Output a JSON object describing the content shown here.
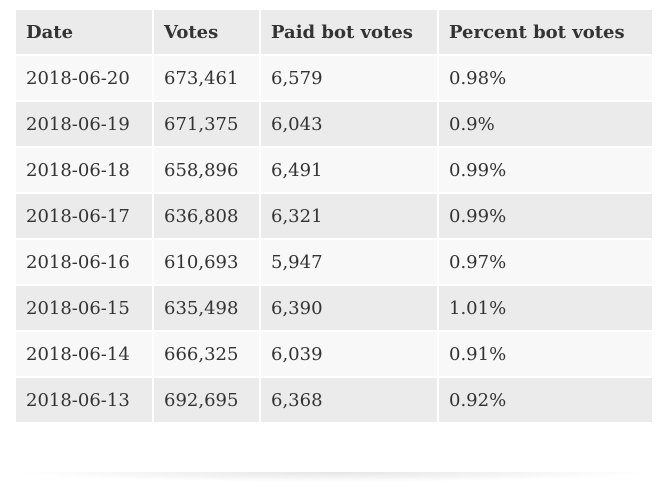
{
  "table": {
    "headers": [
      "Date",
      "Votes",
      "Paid bot votes",
      "Percent bot votes"
    ],
    "rows": [
      [
        "2018-06-20",
        "673,461",
        "6,579",
        "0.98%"
      ],
      [
        "2018-06-19",
        "671,375",
        "6,043",
        "0.9%"
      ],
      [
        "2018-06-18",
        "658,896",
        "6,491",
        "0.99%"
      ],
      [
        "2018-06-17",
        "636,808",
        "6,321",
        "0.99%"
      ],
      [
        "2018-06-16",
        "610,693",
        "5,947",
        "0.97%"
      ],
      [
        "2018-06-15",
        "635,498",
        "6,390",
        "1.01%"
      ],
      [
        "2018-06-14",
        "666,325",
        "6,039",
        "0.91%"
      ],
      [
        "2018-06-13",
        "692,695",
        "6,368",
        "0.92%"
      ]
    ]
  }
}
